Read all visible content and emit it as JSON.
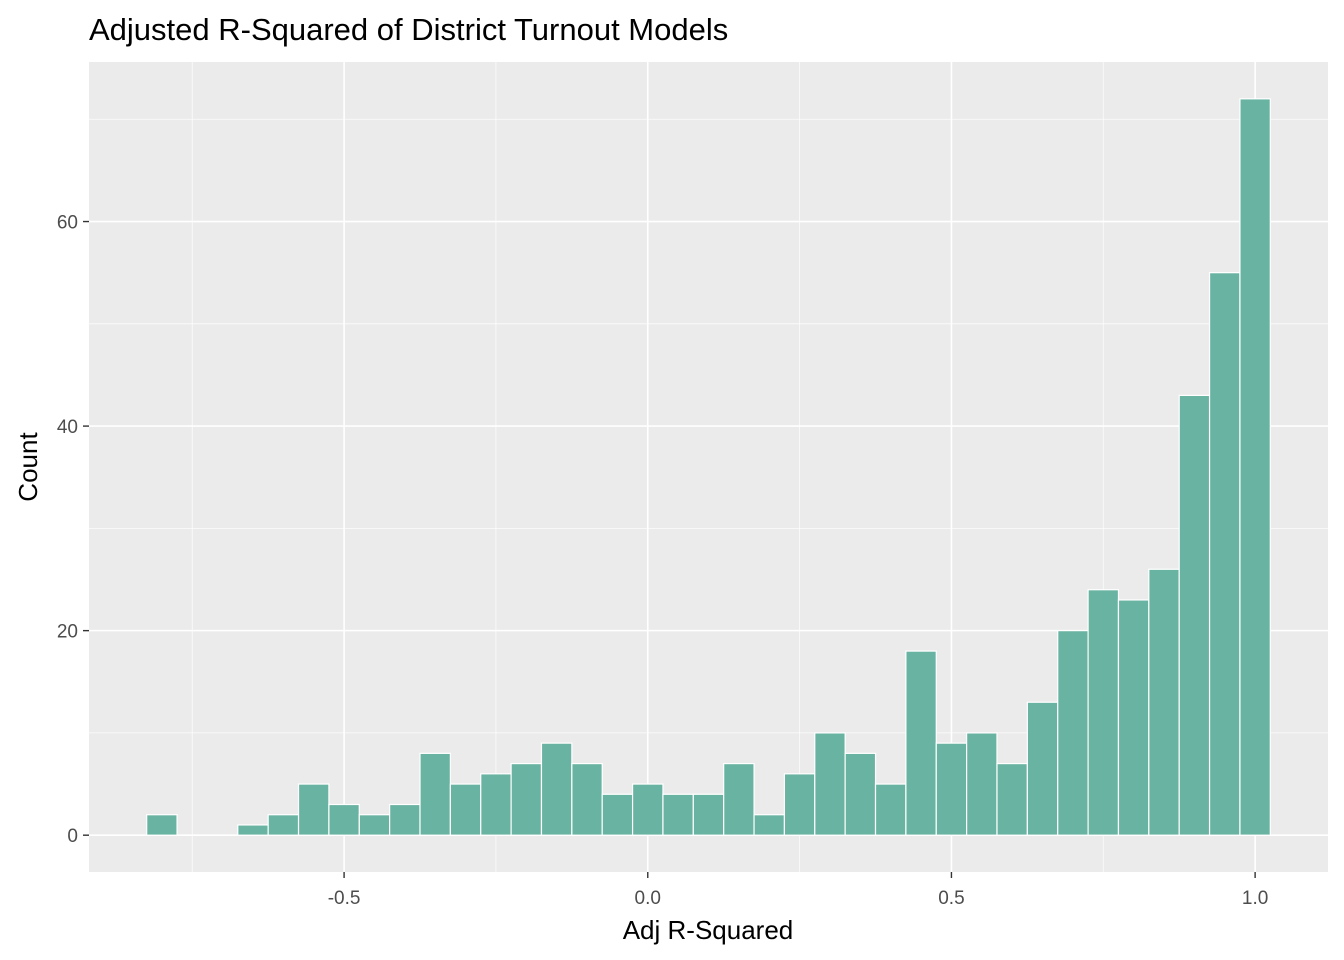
{
  "chart_data": {
    "type": "bar",
    "subtype": "histogram",
    "title": "Adjusted R-Squared of District Turnout Models",
    "xlabel": "Adj R-Squared",
    "ylabel": "Count",
    "xlim": [
      -0.92,
      1.12
    ],
    "ylim": [
      -3.6,
      75.6
    ],
    "x_ticks": [
      -0.5,
      0.0,
      0.5,
      1.0
    ],
    "x_tick_labels": [
      "-0.5",
      "0.0",
      "0.5",
      "1.0"
    ],
    "y_ticks": [
      0,
      20,
      40,
      60
    ],
    "y_tick_labels": [
      "0",
      "20",
      "40",
      "60"
    ],
    "bin_width": 0.05,
    "bin_centers": [
      -0.8,
      -0.75,
      -0.7,
      -0.65,
      -0.6,
      -0.55,
      -0.5,
      -0.45,
      -0.4,
      -0.35,
      -0.3,
      -0.25,
      -0.2,
      -0.15,
      -0.1,
      -0.05,
      0.0,
      0.05,
      0.1,
      0.15,
      0.2,
      0.25,
      0.3,
      0.35,
      0.4,
      0.45,
      0.5,
      0.55,
      0.6,
      0.65,
      0.7,
      0.75,
      0.8,
      0.85,
      0.9,
      0.95,
      1.0
    ],
    "values": [
      2,
      0,
      0,
      1,
      2,
      5,
      3,
      2,
      3,
      8,
      5,
      6,
      7,
      9,
      7,
      4,
      5,
      4,
      4,
      7,
      2,
      6,
      10,
      8,
      5,
      18,
      9,
      10,
      7,
      13,
      20,
      24,
      23,
      26,
      43,
      55,
      72
    ],
    "grid": true,
    "legend": "none",
    "colors": {
      "bar_fill": "#69b3a2",
      "bar_outline": "#ffffff",
      "panel_background": "#ebebeb",
      "grid_major": "#ffffff",
      "tick_label": "#4d4d4d"
    }
  }
}
